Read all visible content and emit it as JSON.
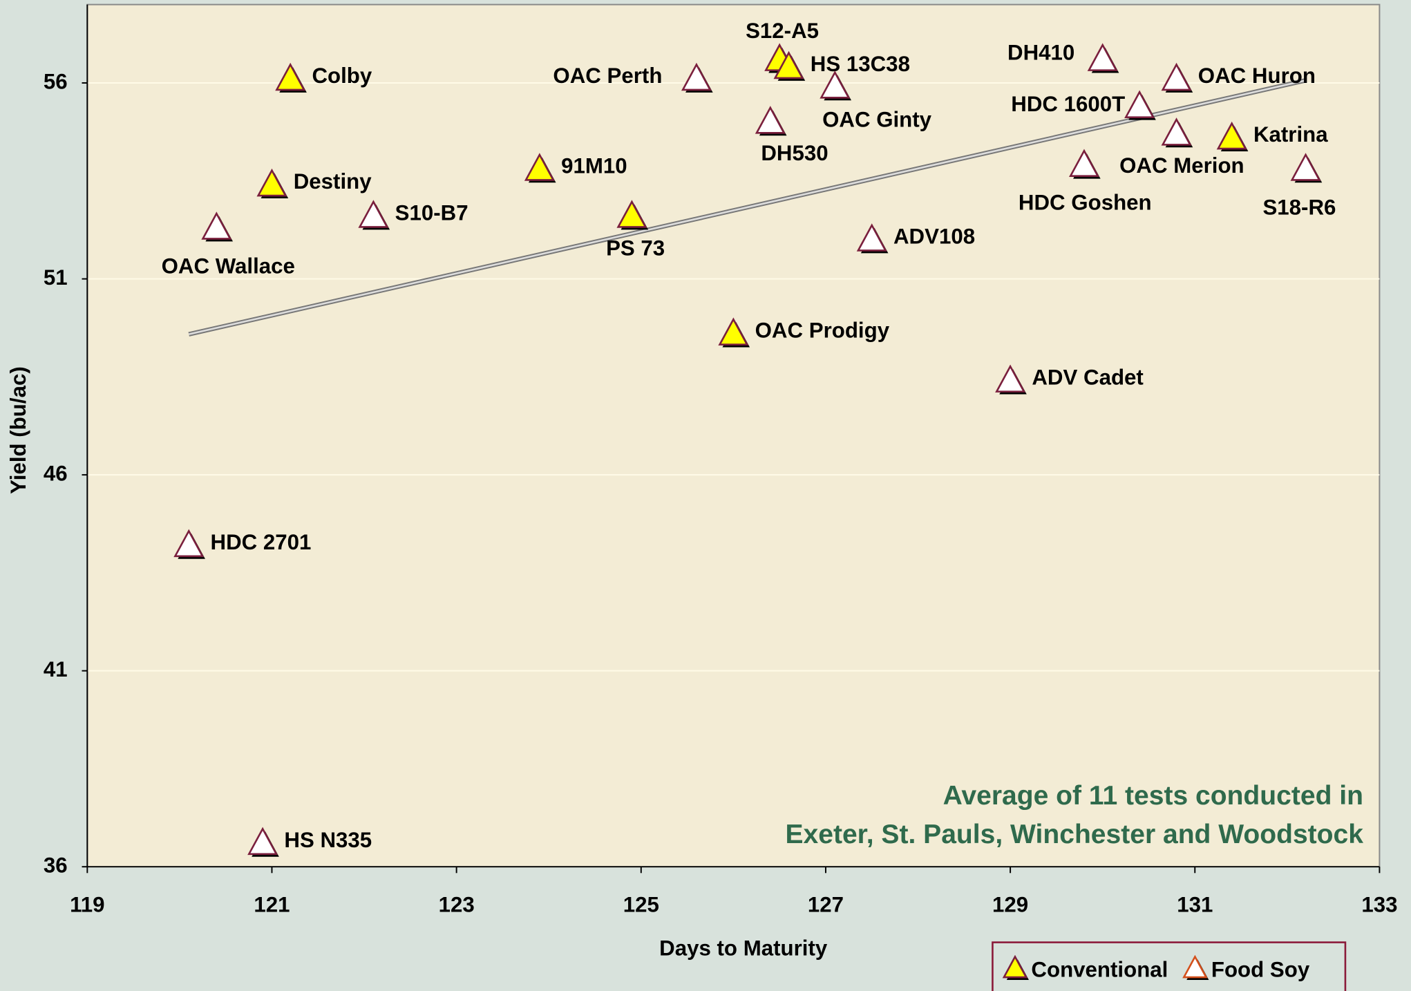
{
  "chart_data": {
    "type": "scatter",
    "xlabel": "Days to Maturity",
    "ylabel": "Yield (bu/ac)",
    "annotation": [
      "Average of 11 tests conducted in",
      "Exeter, St. Pauls, Winchester and Woodstock"
    ],
    "xlim": [
      119,
      133
    ],
    "xticks": [
      119,
      121,
      123,
      125,
      127,
      129,
      131,
      133
    ],
    "ylim": [
      36,
      58
    ],
    "yticks": [
      36,
      41,
      46,
      51,
      56
    ],
    "grid": true,
    "legend": "bottom",
    "trendline": true,
    "series": [
      {
        "name": "Conventional",
        "color": "#ffff00",
        "edgecolor": "#7a1f3d",
        "labels": [
          "Colby",
          "Destiny",
          "91M10",
          "PS 73",
          "S12-A5",
          "HS 13C38",
          "OAC Prodigy",
          "Katrina"
        ],
        "x": [
          121.2,
          121.0,
          123.9,
          124.9,
          126.5,
          126.6,
          126.0,
          131.4
        ],
        "values": [
          56.1,
          53.4,
          53.8,
          52.6,
          56.6,
          56.4,
          49.6,
          54.6
        ]
      },
      {
        "name": "Food Soy",
        "color": "#ffffff",
        "edgecolor": "#7a1f3d",
        "legend_edgecolor": "#d4501c",
        "labels": [
          "OAC Wallace",
          "S10-B7",
          "HDC 2701",
          "HS N335",
          "OAC Perth",
          "DH530",
          "OAC Ginty",
          "ADV108",
          "ADV Cadet",
          "DH410",
          "HDC 1600T",
          "OAC Huron",
          "OAC Merion",
          "HDC Goshen",
          "S18-R6"
        ],
        "x": [
          120.4,
          122.1,
          120.1,
          120.9,
          125.6,
          126.4,
          127.1,
          127.5,
          129.0,
          130.0,
          130.4,
          130.8,
          130.8,
          129.8,
          132.2
        ],
        "values": [
          52.3,
          52.6,
          44.2,
          36.6,
          56.1,
          55.0,
          55.9,
          52.0,
          48.4,
          56.6,
          55.4,
          56.1,
          54.7,
          53.9,
          53.8
        ]
      }
    ]
  }
}
